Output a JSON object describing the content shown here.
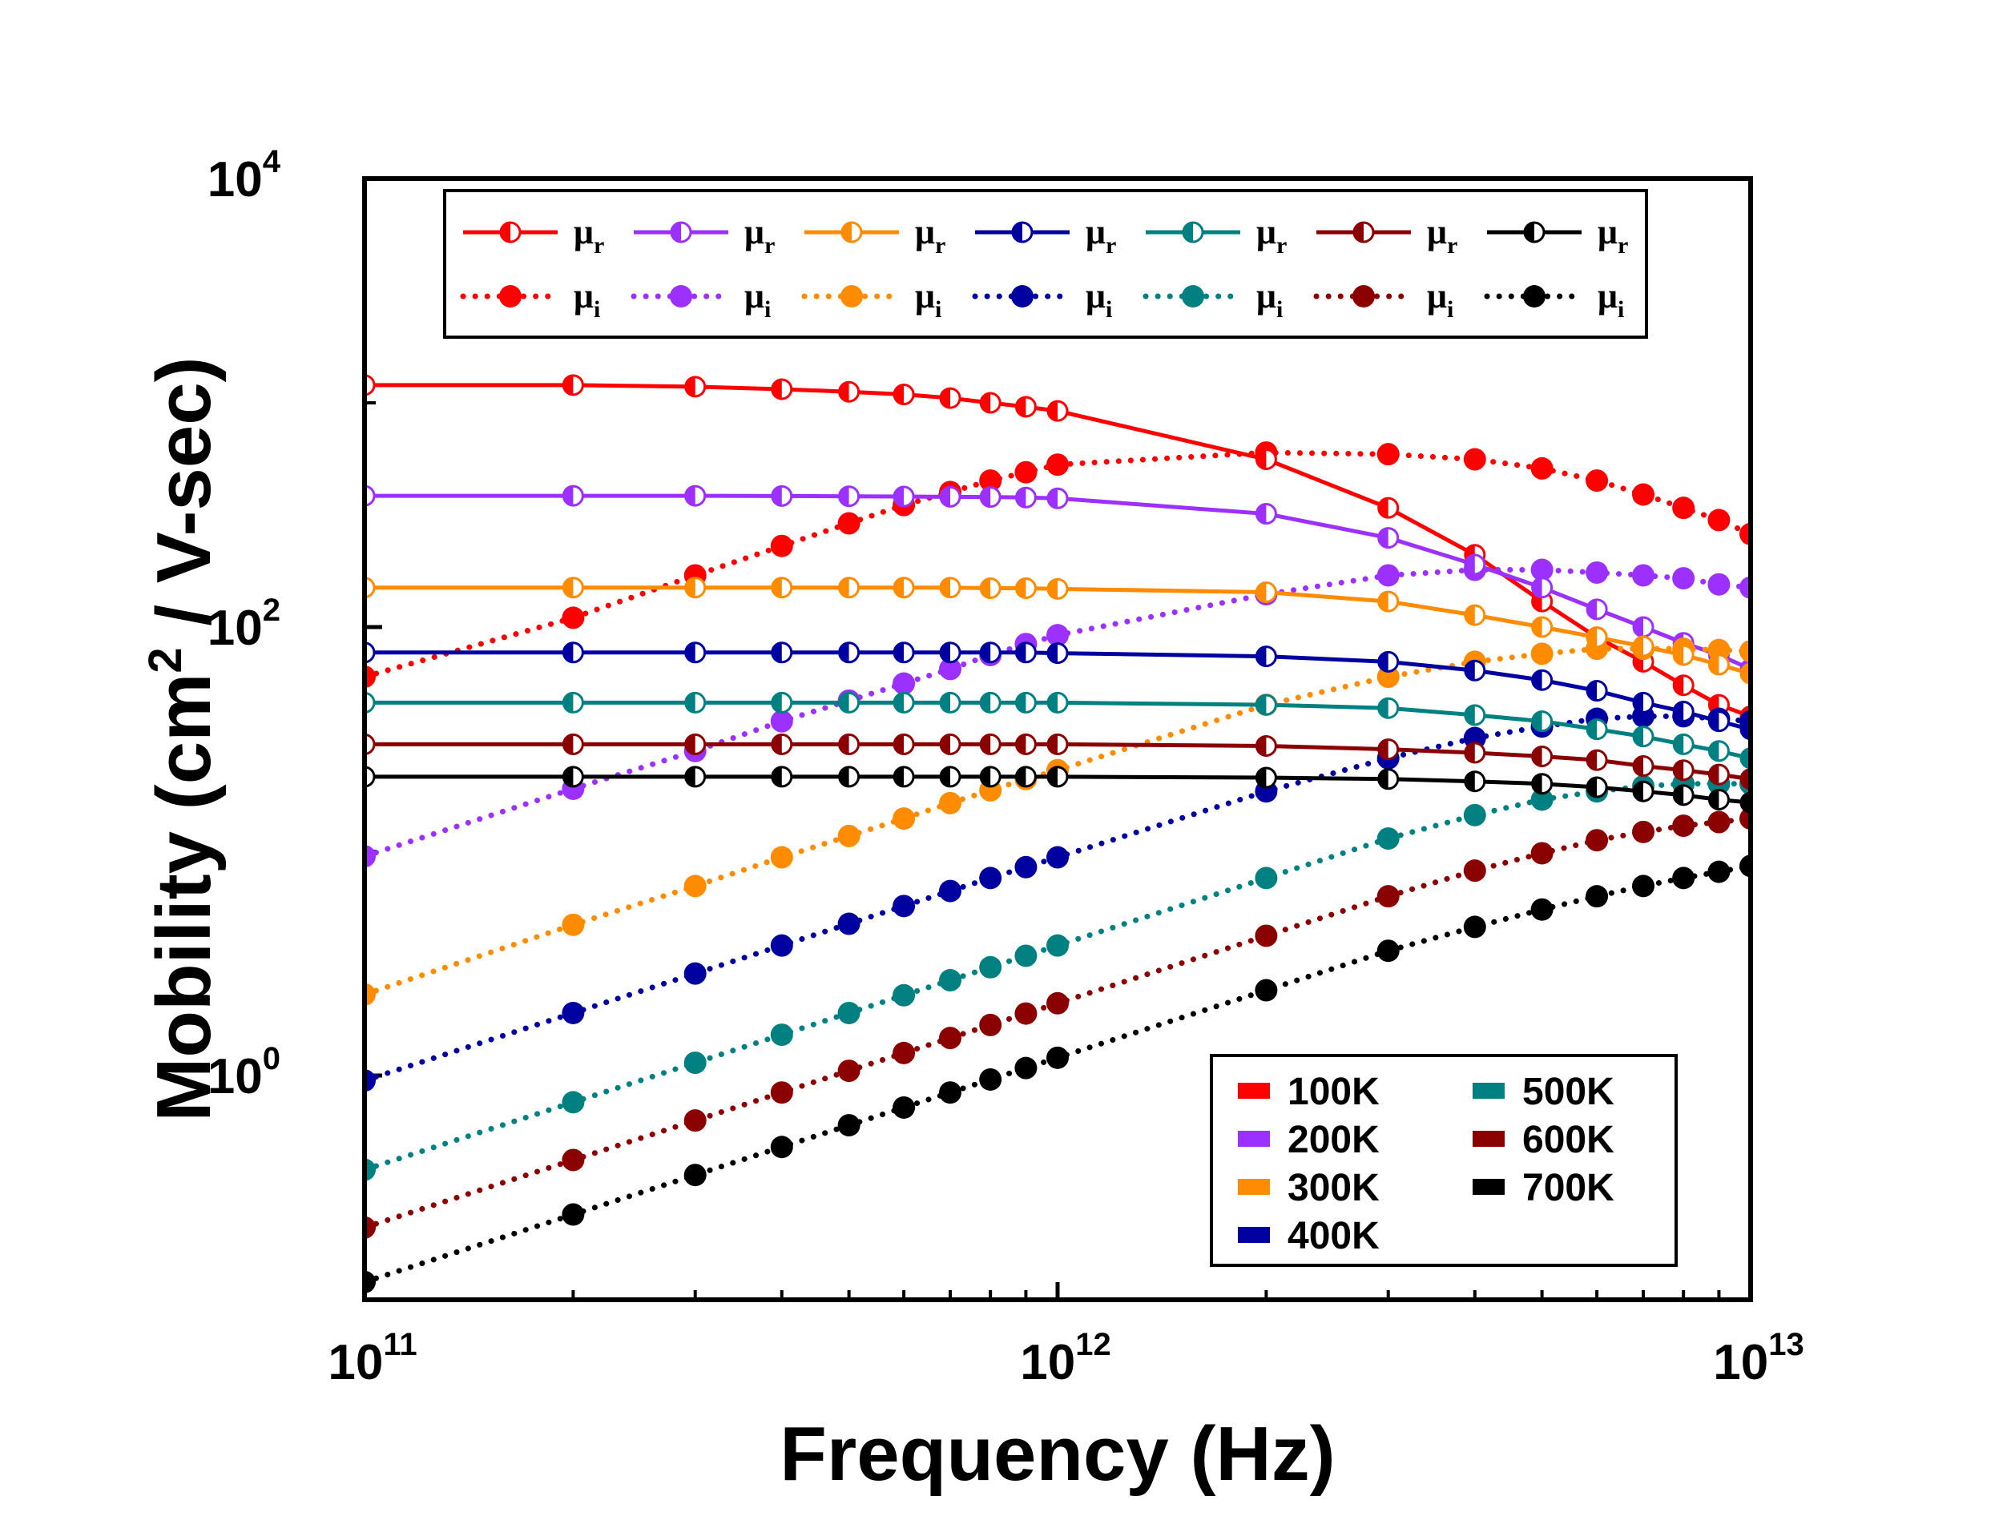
{
  "chart_data": {
    "type": "line",
    "xlabel": "Frequency (Hz)",
    "ylabel_main": "Mobility (cm",
    "ylabel_sup": "2",
    "ylabel_tail": " / V-sec)",
    "xscale": "log",
    "yscale": "log",
    "xlim": [
      100000000000.0,
      10000000000000.0
    ],
    "ylim": [
      0.1,
      10000
    ],
    "x_ticks": [
      {
        "base": "10",
        "exp": "11"
      },
      {
        "base": "10",
        "exp": "12"
      },
      {
        "base": "10",
        "exp": "13"
      }
    ],
    "y_ticks": [
      {
        "base": "10",
        "exp": "0"
      },
      {
        "base": "10",
        "exp": "2"
      },
      {
        "base": "10",
        "exp": "4"
      }
    ],
    "x": [
      100000000000.0,
      200000000000.0,
      300000000000.0,
      400000000000.0,
      500000000000.0,
      600000000000.0,
      700000000000.0,
      800000000000.0,
      900000000000.0,
      1000000000000.0,
      2000000000000.0,
      3000000000000.0,
      4000000000000.0,
      5000000000000.0,
      6000000000000.0,
      7000000000000.0,
      8000000000000.0,
      9000000000000.0,
      10000000000000.0
    ],
    "series": [
      {
        "name": "100K",
        "color": "#ff0000",
        "mu_r": [
          1200,
          1200,
          1180,
          1150,
          1120,
          1090,
          1050,
          1000,
          960,
          920,
          560,
          340,
          210,
          130,
          90,
          70,
          55,
          45,
          40
        ],
        "mu_i": [
          60,
          110,
          170,
          230,
          290,
          350,
          400,
          450,
          490,
          530,
          600,
          590,
          560,
          510,
          450,
          390,
          340,
          300,
          260
        ]
      },
      {
        "name": "200K",
        "color": "#9b30ff",
        "mu_r": [
          385,
          385,
          385,
          384,
          383,
          382,
          381,
          380,
          378,
          375,
          320,
          250,
          190,
          150,
          120,
          100,
          85,
          75,
          65
        ],
        "mu_i": [
          9.5,
          19,
          28,
          38,
          47,
          56,
          65,
          75,
          84,
          92,
          140,
          170,
          180,
          180,
          175,
          170,
          165,
          155,
          150
        ]
      },
      {
        "name": "300K",
        "color": "#ff8c00",
        "mu_r": [
          150,
          150,
          150,
          150,
          150,
          150,
          150,
          149,
          149,
          148,
          143,
          130,
          113,
          100,
          90,
          82,
          75,
          68,
          62
        ],
        "mu_i": [
          2.3,
          4.7,
          7,
          9.4,
          11.7,
          14,
          16.4,
          18.7,
          21,
          23,
          45,
          60,
          70,
          76,
          80,
          80,
          80,
          79,
          78
        ]
      },
      {
        "name": "400K",
        "color": "#0000a0",
        "mu_r": [
          77,
          77,
          77,
          77,
          77,
          77,
          77,
          77,
          77,
          76.5,
          74,
          70,
          64,
          58,
          52,
          46,
          42,
          38,
          35
        ],
        "mu_i": [
          0.95,
          1.9,
          2.85,
          3.8,
          4.75,
          5.7,
          6.65,
          7.6,
          8.5,
          9.4,
          18.5,
          26,
          32,
          36,
          39,
          40,
          40,
          39,
          38
        ]
      },
      {
        "name": "500K",
        "color": "#008080",
        "mu_r": [
          46,
          46,
          46,
          46,
          46,
          46,
          46,
          46,
          46,
          46,
          45,
          43.5,
          40.5,
          38,
          35,
          32.5,
          30,
          28,
          26
        ],
        "mu_i": [
          0.38,
          0.76,
          1.14,
          1.52,
          1.9,
          2.28,
          2.66,
          3.04,
          3.42,
          3.8,
          7.6,
          11.4,
          14.5,
          17,
          18.5,
          19.5,
          20,
          20,
          20
        ]
      },
      {
        "name": "600K",
        "color": "#8b0000",
        "mu_r": [
          30,
          30,
          30,
          30,
          30,
          30,
          30,
          30,
          30,
          30,
          29.5,
          28.5,
          27.5,
          26.5,
          25.5,
          24,
          23,
          22,
          21
        ],
        "mu_i": [
          0.21,
          0.42,
          0.63,
          0.84,
          1.05,
          1.26,
          1.47,
          1.68,
          1.89,
          2.1,
          4.2,
          6.3,
          8.2,
          9.8,
          11.2,
          12.2,
          13,
          13.5,
          14
        ]
      },
      {
        "name": "700K",
        "color": "#000000",
        "mu_r": [
          21.5,
          21.5,
          21.5,
          21.5,
          21.5,
          21.5,
          21.5,
          21.5,
          21.5,
          21.5,
          21.3,
          21,
          20.5,
          20,
          19.3,
          18.5,
          17.8,
          17,
          16.5
        ],
        "mu_i": [
          0.12,
          0.24,
          0.36,
          0.48,
          0.6,
          0.72,
          0.84,
          0.96,
          1.08,
          1.2,
          2.4,
          3.6,
          4.6,
          5.5,
          6.3,
          7.0,
          7.6,
          8.1,
          8.6
        ]
      }
    ],
    "marker_legend": {
      "mu_symbol": "μ",
      "real_sub": "r",
      "imag_sub": "i"
    },
    "temperature_legend": {
      "placement": "bottom-right",
      "columns": [
        [
          "100K",
          "200K",
          "300K",
          "400K"
        ],
        [
          "500K",
          "600K",
          "700K"
        ]
      ]
    }
  }
}
